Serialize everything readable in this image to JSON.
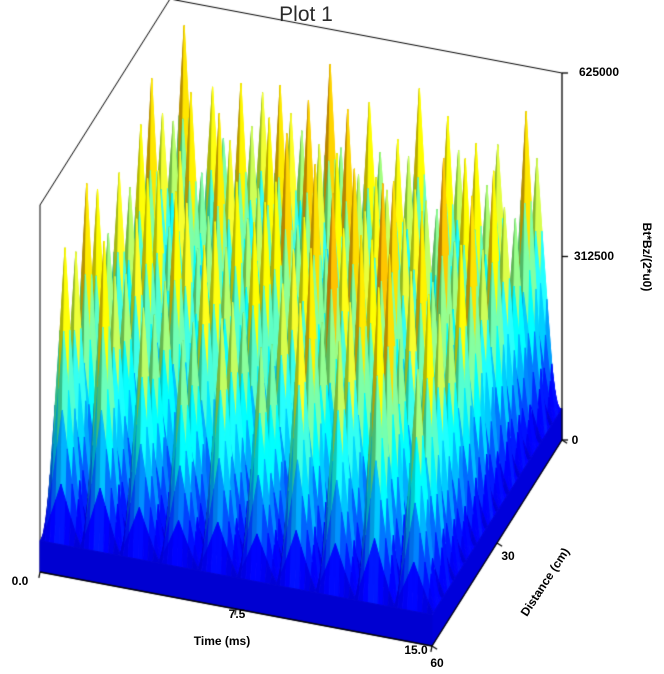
{
  "colors": {
    "background": "#ffffff",
    "axes": "#000000",
    "title": "#2b2b2b"
  },
  "chart_data": {
    "type": "surface",
    "title": "Plot 1",
    "xlabel": "Time (ms)",
    "ylabel": "Distance (cm)",
    "zlabel": "Bt*Bz/(2*u0)",
    "xlim": [
      0,
      15
    ],
    "ylim": [
      0,
      60
    ],
    "zlim": [
      0,
      625000
    ],
    "x_ticks": [
      0,
      7.5,
      15
    ],
    "x_tick_labels": [
      "0.0",
      "7.5",
      "15.0"
    ],
    "y_ticks": [
      0,
      30,
      60
    ],
    "y_tick_labels": [
      "0",
      "30",
      "60"
    ],
    "z_ticks": [
      0,
      312500,
      625000
    ],
    "z_tick_labels": [
      "0",
      "312500",
      "625000"
    ],
    "colormap": "jet",
    "legend": "none",
    "grid": false,
    "surface": {
      "description": "dense lattice of sharp conical peaks over a low plateau; valleys drop to ~50000, peak tips ~420000-625000, colored by height (blue base, green/yellow mid, orange/red tips)",
      "peaks_x": 10,
      "peaks_y": 12,
      "subdivisions": 8,
      "base_fraction": 0.085,
      "peak_min_fraction": 0.66,
      "peak_max_fraction": 1.0,
      "sharpness": 1.15,
      "seed": 42
    }
  }
}
